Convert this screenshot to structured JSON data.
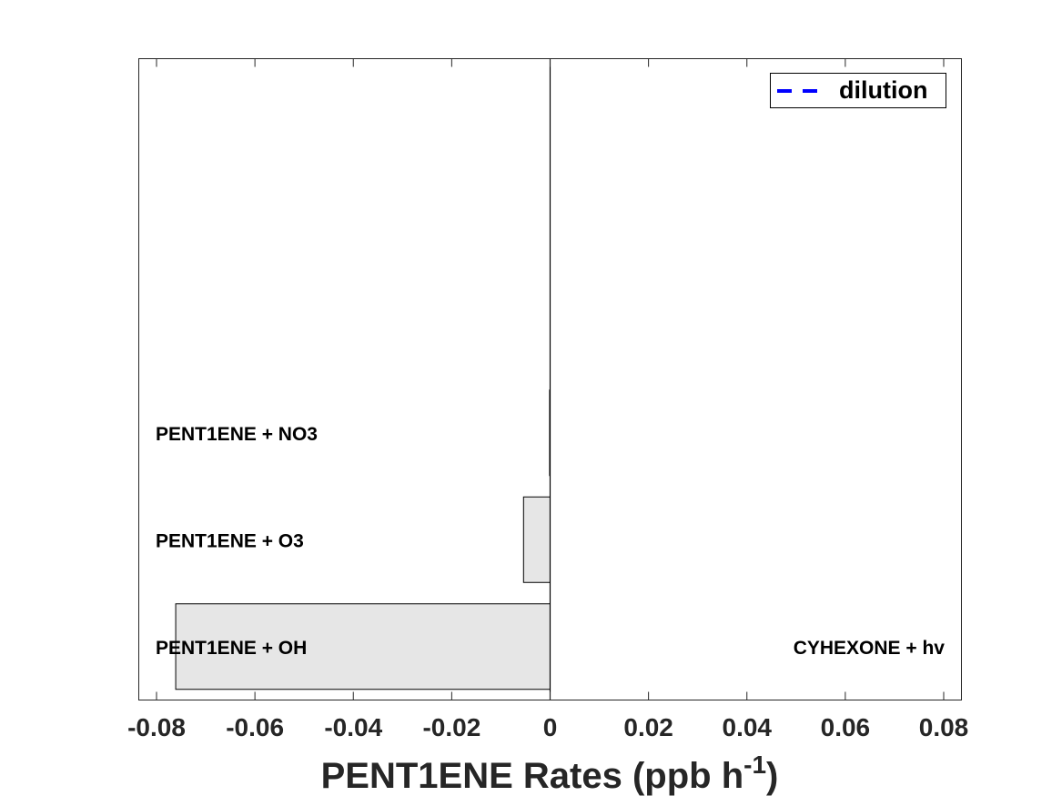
{
  "chart_data": {
    "type": "bar",
    "orientation": "horizontal",
    "xlabel": "PENT1ENE Rates (ppb h",
    "xlabel_superscript": "-1",
    "xlabel_suffix": ")",
    "xlim": [
      -0.08,
      0.08
    ],
    "xticks": [
      -0.08,
      -0.06,
      -0.04,
      -0.02,
      0,
      0.02,
      0.04,
      0.06,
      0.08
    ],
    "xtick_labels": [
      "-0.08",
      "-0.06",
      "-0.04",
      "-0.02",
      "0",
      "0.02",
      "0.04",
      "0.06",
      "0.08"
    ],
    "ylim": [
      0.5,
      6.5
    ],
    "negative_bars": [
      {
        "label": "PENT1ENE + OH",
        "position": 1,
        "value": -0.0761
      },
      {
        "label": "PENT1ENE + O3",
        "position": 2,
        "value": -0.0054
      },
      {
        "label": "PENT1ENE + NO3",
        "position": 3,
        "value": -0.0001
      }
    ],
    "positive_bars": [
      {
        "label": "CYHEXONE + hv",
        "position": 1,
        "value": 0.0
      }
    ],
    "bar_color": "#e6e6e6",
    "bar_edge_color": "#000000",
    "grid": false,
    "legend": {
      "placement": "top-right",
      "entries": [
        {
          "label": "dilution",
          "style": "dashed",
          "color": "#0000ff"
        }
      ]
    }
  }
}
